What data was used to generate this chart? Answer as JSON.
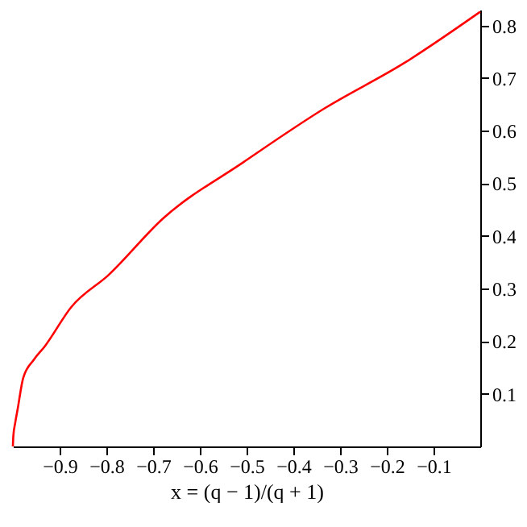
{
  "chart_data": {
    "type": "line",
    "xlabel": "x = (q − 1)/(q + 1)",
    "x": [
      -1.0,
      -0.999,
      -0.995,
      -0.99,
      -0.978,
      -0.955,
      -0.932,
      -0.875,
      -0.795,
      -0.679,
      -0.507,
      -0.334,
      -0.162,
      0.0
    ],
    "series": [
      {
        "color": "#ff0000",
        "values": [
          0.0,
          0.02,
          0.045,
          0.07,
          0.13,
          0.165,
          0.19,
          0.265,
          0.326,
          0.433,
          0.54,
          0.642,
          0.729,
          0.826
        ]
      }
    ],
    "xlim": [
      -1.0,
      0.0
    ],
    "xticks": [
      -0.9,
      -0.8,
      -0.7,
      -0.6,
      -0.5,
      -0.4,
      -0.3,
      -0.2,
      -0.1
    ],
    "ylim": [
      0.0,
      0.83
    ],
    "yticks": [
      0.1,
      0.2,
      0.3,
      0.4,
      0.5,
      0.6,
      0.7,
      0.8
    ],
    "grid": false,
    "marker": "none",
    "line_style": "solid"
  }
}
